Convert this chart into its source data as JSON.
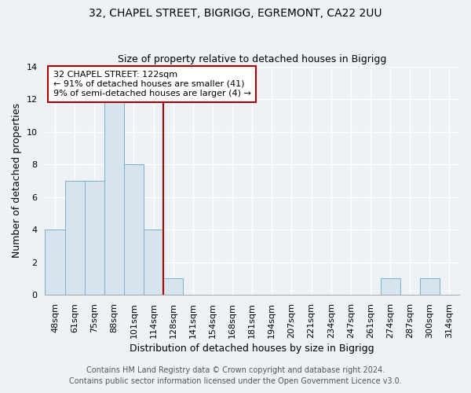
{
  "title_line1": "32, CHAPEL STREET, BIGRIGG, EGREMONT, CA22 2UU",
  "title_line2": "Size of property relative to detached houses in Bigrigg",
  "xlabel": "Distribution of detached houses by size in Bigrigg",
  "ylabel": "Number of detached properties",
  "bar_labels": [
    "48sqm",
    "61sqm",
    "75sqm",
    "88sqm",
    "101sqm",
    "114sqm",
    "128sqm",
    "141sqm",
    "154sqm",
    "168sqm",
    "181sqm",
    "194sqm",
    "207sqm",
    "221sqm",
    "234sqm",
    "247sqm",
    "261sqm",
    "274sqm",
    "287sqm",
    "300sqm",
    "314sqm"
  ],
  "bar_heights": [
    4,
    7,
    7,
    12,
    8,
    4,
    1,
    0,
    0,
    0,
    0,
    0,
    0,
    0,
    0,
    0,
    0,
    1,
    0,
    1,
    0
  ],
  "bar_color": "#d6e4f0",
  "bar_edge_color": "#7aafc8",
  "ylim": [
    0,
    14
  ],
  "yticks": [
    0,
    2,
    4,
    6,
    8,
    10,
    12,
    14
  ],
  "vline_color": "#aa0000",
  "annotation_title": "32 CHAPEL STREET: 122sqm",
  "annotation_line1": "← 91% of detached houses are smaller (41)",
  "annotation_line2": "9% of semi-detached houses are larger (4) →",
  "annotation_box_color": "#ffffff",
  "annotation_box_edge_color": "#aa0000",
  "footnote1": "Contains HM Land Registry data © Crown copyright and database right 2024.",
  "footnote2": "Contains public sector information licensed under the Open Government Licence v3.0.",
  "background_color": "#eef2f7",
  "plot_bg_color": "#eef2f7",
  "grid_color": "#ffffff",
  "title_fontsize": 10,
  "subtitle_fontsize": 9,
  "axis_label_fontsize": 9,
  "tick_fontsize": 8,
  "annotation_fontsize": 8,
  "footnote_fontsize": 7
}
